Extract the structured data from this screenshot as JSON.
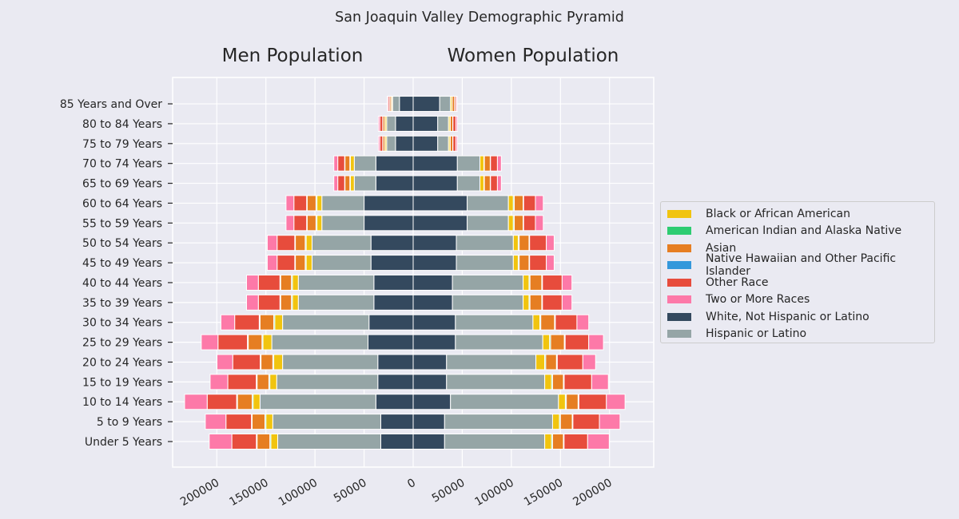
{
  "chart_data": {
    "type": "bar",
    "title": "San Joaquin Valley Demographic Pyramid",
    "subtitles": {
      "men": "Men Population",
      "women": "Women Population"
    },
    "categories": [
      "Under 5 Years",
      "5 to 9 Years",
      "10 to 14 Years",
      "15 to 19 Years",
      "20 to 24 Years",
      "25 to 29 Years",
      "30 to 34 Years",
      "35 to 39 Years",
      "40 to 44 Years",
      "45 to 49 Years",
      "50 to 54 Years",
      "55 to 59 Years",
      "60 to 64 Years",
      "65 to 69 Years",
      "70 to 74 Years",
      "75 to 79 Years",
      "80 to 84 Years",
      "85 Years and Over"
    ],
    "xlim": [
      -245000,
      245000
    ],
    "xticks": [
      -200000,
      -150000,
      -100000,
      -50000,
      0,
      50000,
      100000,
      150000,
      200000
    ],
    "xtick_labels": [
      "200000",
      "150000",
      "100000",
      "50000",
      "0",
      "50000",
      "100000",
      "150000",
      "200000"
    ],
    "stack_order": [
      "White, Not Hispanic or Latino",
      "Hispanic or Latino",
      "Black or African American",
      "American Indian and Alaska Native",
      "Asian",
      "Native Hawaiian and Other Pacific Islander",
      "Other Race",
      "Two or More Races"
    ],
    "legend_order": [
      "Black or African American",
      "American Indian and Alaska Native",
      "Asian",
      "Native Hawaiian and Other Pacific Islander",
      "Other Race",
      "Two or More Races",
      "White, Not Hispanic or Latino",
      "Hispanic or Latino"
    ],
    "legend_position": "center-right",
    "colors": {
      "White, Not Hispanic or Latino": "#34495e",
      "Hispanic or Latino": "#95a5a6",
      "Black or African American": "#f1c40f",
      "American Indian and Alaska Native": "#2ecc71",
      "Asian": "#e67e22",
      "Native Hawaiian and Other Pacific Islander": "#3498db",
      "Other Race": "#e74c3c",
      "Two or More Races": "#fd79a8"
    },
    "series": {
      "men": [
        {
          "name": "White, Not Hispanic or Latino",
          "values": [
            33000,
            33000,
            38000,
            36000,
            36000,
            46000,
            45000,
            40000,
            40000,
            43000,
            43000,
            50000,
            50000,
            38000,
            38000,
            18000,
            18000,
            14000
          ]
        },
        {
          "name": "Hispanic or Latino",
          "values": [
            105000,
            110000,
            118000,
            103000,
            97000,
            98000,
            88000,
            77000,
            77000,
            60000,
            60000,
            43000,
            43000,
            22000,
            22000,
            9000,
            9000,
            7000
          ]
        },
        {
          "name": "Black or African American",
          "values": [
            7000,
            7000,
            7000,
            7000,
            9000,
            9000,
            8000,
            6000,
            6000,
            6000,
            6000,
            5000,
            5000,
            4000,
            4000,
            1500,
            1500,
            1000
          ]
        },
        {
          "name": "American Indian and Alaska Native",
          "values": [
            1000,
            1000,
            1000,
            1000,
            1000,
            1000,
            1000,
            1000,
            1000,
            1000,
            1000,
            1000,
            1000,
            500,
            500,
            300,
            300,
            200
          ]
        },
        {
          "name": "Asian",
          "values": [
            13000,
            13000,
            15000,
            12000,
            12000,
            14000,
            14000,
            11000,
            11000,
            10000,
            10000,
            9000,
            9000,
            5000,
            5000,
            2000,
            2000,
            1500
          ]
        },
        {
          "name": "Native Hawaiian and Other Pacific Islander",
          "values": [
            700,
            700,
            800,
            800,
            800,
            800,
            800,
            700,
            700,
            600,
            600,
            500,
            500,
            300,
            300,
            200,
            200,
            100
          ]
        },
        {
          "name": "Other Race",
          "values": [
            25000,
            26000,
            30000,
            29000,
            28000,
            30000,
            25000,
            22000,
            22000,
            18000,
            18000,
            13000,
            13000,
            7000,
            7000,
            3000,
            3000,
            1500
          ]
        },
        {
          "name": "Two or More Races",
          "values": [
            23000,
            21000,
            23000,
            18000,
            16000,
            17000,
            14000,
            12000,
            12000,
            10000,
            10000,
            8000,
            8000,
            4000,
            4000,
            1500,
            1500,
            1000
          ]
        }
      ],
      "women": [
        {
          "name": "White, Not Hispanic or Latino",
          "values": [
            32000,
            32000,
            38000,
            34000,
            34000,
            43000,
            43000,
            40000,
            40000,
            44000,
            44000,
            55000,
            55000,
            45000,
            45000,
            25000,
            25000,
            27000
          ]
        },
        {
          "name": "Hispanic or Latino",
          "values": [
            102000,
            110000,
            110000,
            100000,
            91000,
            89000,
            79000,
            72000,
            72000,
            58000,
            58000,
            42000,
            42000,
            23000,
            23000,
            11000,
            11000,
            11000
          ]
        },
        {
          "name": "Black or African American",
          "values": [
            7000,
            7000,
            7000,
            7000,
            9000,
            7000,
            7000,
            6000,
            6000,
            5000,
            5000,
            5000,
            5000,
            4000,
            4000,
            1500,
            1500,
            1500
          ]
        },
        {
          "name": "American Indian and Alaska Native",
          "values": [
            1000,
            1000,
            1000,
            1000,
            1000,
            1000,
            1000,
            1000,
            1000,
            1000,
            1000,
            1000,
            1000,
            500,
            500,
            300,
            300,
            200
          ]
        },
        {
          "name": "Asian",
          "values": [
            11000,
            12000,
            12000,
            11000,
            11000,
            14000,
            14000,
            12000,
            12000,
            10000,
            10000,
            9000,
            9000,
            6000,
            6000,
            2500,
            2500,
            2500
          ]
        },
        {
          "name": "Native Hawaiian and Other Pacific Islander",
          "values": [
            700,
            700,
            800,
            800,
            800,
            800,
            800,
            700,
            700,
            600,
            600,
            500,
            500,
            300,
            300,
            200,
            200,
            100
          ]
        },
        {
          "name": "Other Race",
          "values": [
            24000,
            27000,
            28000,
            28000,
            26000,
            24000,
            22000,
            20000,
            20000,
            17000,
            17000,
            12000,
            12000,
            7000,
            7000,
            3000,
            3000,
            1500
          ]
        },
        {
          "name": "Two or More Races",
          "values": [
            22000,
            21000,
            19000,
            17000,
            13000,
            15000,
            12000,
            10000,
            10000,
            8000,
            8000,
            8000,
            8000,
            4000,
            4000,
            1500,
            1500,
            1000
          ]
        }
      ]
    }
  }
}
